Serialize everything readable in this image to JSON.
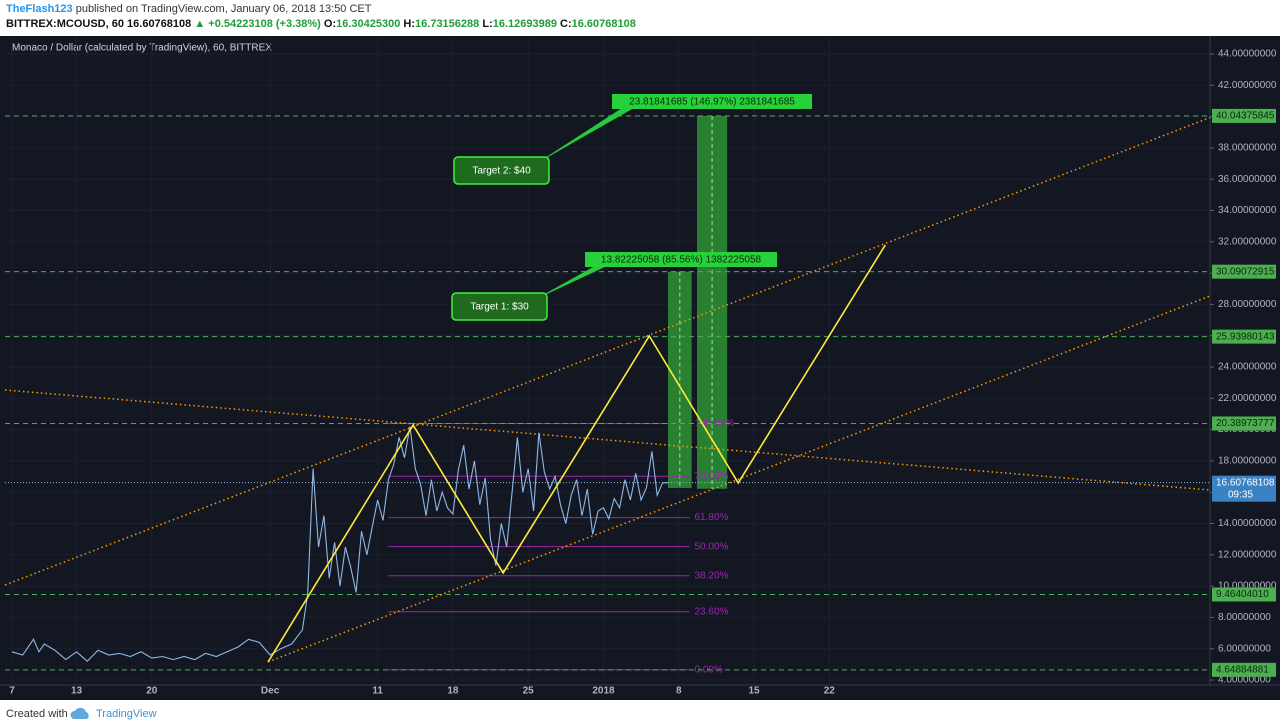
{
  "header": {
    "user": "TheFlash123",
    "published": "published on TradingView.com, January 06, 2018 13:50 CET",
    "symbol": "BITTREX:MCOUSD, 60",
    "price": "16.60768108",
    "change": "+0.54223108 (+3.38%)",
    "o_label": "O:",
    "open": "16.30425300",
    "h_label": "H:",
    "high": "16.73156288",
    "l_label": "L:",
    "low": "16.12693989",
    "c_label": "C:",
    "close": "16.60768108"
  },
  "footer": {
    "created": "Created with",
    "brand": "TradingView"
  },
  "chart_data": {
    "type": "line",
    "title": "Monaco / Dollar (calculated by TradingView), 60, BITTREX",
    "color": "#8fb8e6",
    "grid": true,
    "xlim": [
      5.35,
      117.4
    ],
    "ylim": [
      3.68,
      45.15
    ],
    "xticks": [
      {
        "value": 6,
        "label": "7"
      },
      {
        "value": 12,
        "label": "13"
      },
      {
        "value": 19,
        "label": "20"
      },
      {
        "value": 30,
        "label": "Dec"
      },
      {
        "value": 40,
        "label": "11"
      },
      {
        "value": 47,
        "label": "18"
      },
      {
        "value": 54,
        "label": "25"
      },
      {
        "value": 61,
        "label": "2018"
      },
      {
        "value": 68,
        "label": "8"
      },
      {
        "value": 75,
        "label": "15"
      },
      {
        "value": 82,
        "label": "22"
      }
    ],
    "yticks": [
      {
        "value": 4,
        "label": "4.00000000"
      },
      {
        "value": 6,
        "label": "6.00000000"
      },
      {
        "value": 8,
        "label": "8.00000000"
      },
      {
        "value": 10,
        "label": "10.00000000"
      },
      {
        "value": 12,
        "label": "12.00000000"
      },
      {
        "value": 14,
        "label": "14.00000000"
      },
      {
        "value": 16,
        "label": "16.00000000"
      },
      {
        "value": 18,
        "label": "18.00000000"
      },
      {
        "value": 20,
        "label": "20.00000000"
      },
      {
        "value": 22,
        "label": "22.00000000"
      },
      {
        "value": 24,
        "label": "24.00000000"
      },
      {
        "value": 26,
        "label": "26.00000000"
      },
      {
        "value": 28,
        "label": "28.00000000"
      },
      {
        "value": 30,
        "label": "30.00000000"
      },
      {
        "value": 32,
        "label": "32.00000000"
      },
      {
        "value": 34,
        "label": "34.00000000"
      },
      {
        "value": 36,
        "label": "36.00000000"
      },
      {
        "value": 38,
        "label": "38.00000000"
      },
      {
        "value": 40,
        "label": "40.00000000"
      },
      {
        "value": 42,
        "label": "42.00000000"
      },
      {
        "value": 44,
        "label": "44.00000000"
      }
    ],
    "x": [
      6,
      7,
      8,
      8.5,
      9,
      10,
      11,
      12,
      13,
      14,
      15,
      16,
      17,
      18,
      19,
      20,
      21,
      22,
      23,
      24,
      25,
      26,
      27,
      28,
      29,
      30,
      31,
      32,
      33,
      33.5,
      34,
      34.5,
      35,
      35.5,
      36,
      36.5,
      37,
      37.5,
      38,
      38.5,
      39,
      39.5,
      40,
      40.5,
      41,
      41.5,
      42,
      42.5,
      43,
      43.5,
      44,
      44.5,
      45,
      45.5,
      46,
      46.5,
      47,
      47.5,
      48,
      48.5,
      49,
      49.5,
      50,
      50.5,
      51,
      51.5,
      52,
      52.5,
      53,
      53.5,
      54,
      54.5,
      55,
      55.5,
      56,
      56.5,
      57,
      57.5,
      58,
      58.5,
      59,
      59.5,
      60,
      60.5,
      61,
      61.5,
      62,
      62.5,
      63,
      63.5,
      64,
      64.5,
      65,
      65.5,
      66,
      66.5,
      67
    ],
    "values": [
      5.8,
      5.6,
      6.6,
      5.8,
      6.3,
      5.9,
      5.3,
      5.8,
      5.2,
      5.9,
      5.6,
      5.7,
      5.5,
      5.8,
      5.4,
      5.5,
      5.3,
      5.5,
      5.3,
      5.7,
      5.5,
      5.8,
      6.1,
      6.6,
      6.4,
      5.6,
      6.0,
      6.3,
      7.2,
      9.5,
      17.5,
      12.5,
      14.5,
      10.5,
      12.8,
      10.0,
      12.5,
      11.2,
      9.6,
      13.5,
      12.0,
      13.8,
      15.5,
      14.2,
      16.8,
      17.8,
      19.5,
      18.2,
      20.2,
      17.5,
      16.5,
      14.5,
      16.8,
      14.8,
      16.0,
      15.0,
      14.6,
      17.4,
      19.0,
      16.2,
      18.0,
      15.2,
      16.9,
      13.0,
      11.3,
      14.0,
      12.5,
      16.0,
      19.5,
      16.0,
      17.5,
      14.8,
      19.8,
      17.3,
      16.2,
      17.0,
      15.2,
      14.0,
      15.8,
      16.8,
      14.5,
      16.2,
      13.3,
      14.8,
      15.0,
      14.3,
      15.6,
      15.0,
      16.8,
      15.5,
      17.2,
      15.5,
      16.3,
      18.6,
      15.8,
      16.6,
      16.6
    ],
    "levels": {
      "color": "#4caf50",
      "items": [
        {
          "value": 40.04375845,
          "label": "40.04375845"
        },
        {
          "value": 30.09072915,
          "label": "30.09072915"
        },
        {
          "value": 25.93980143,
          "label": "25.93980143"
        },
        {
          "value": 20.38973777,
          "label": "20.38973777"
        },
        {
          "value": 9.4640401,
          "label": "9.46404010"
        },
        {
          "value": 4.64884881,
          "label": "4.64884881"
        }
      ]
    },
    "last": {
      "value": 16.60768108,
      "label": "16.60768108",
      "time": "09:35"
    },
    "fib": {
      "start": 4.64884881,
      "end": 20.38973777,
      "x": [
        41,
        69
      ],
      "color": "#9c27b0",
      "levels": [
        {
          "value": 0,
          "label": "0.00%"
        },
        {
          "value": 23.6,
          "label": "23.60%"
        },
        {
          "value": 38.2,
          "label": "38.20%"
        },
        {
          "value": 50,
          "label": "50.00%"
        },
        {
          "value": 61.8,
          "label": "61.80%"
        },
        {
          "value": 78.6,
          "label": "78.60%"
        },
        {
          "value": 100,
          "label": "100.00%"
        }
      ]
    },
    "trendlines": {
      "color": "#ff9800",
      "lines": [
        {
          "x": [
            5.35,
            117.4
          ],
          "y": [
            10.07,
            39.94
          ]
        },
        {
          "x": [
            29.81,
            117.4
          ],
          "y": [
            5.15,
            28.54
          ]
        },
        {
          "x": [
            5.35,
            117.4
          ],
          "y": [
            22.53,
            16.14
          ]
        }
      ]
    },
    "zigzag": {
      "color": "#ffeb3b",
      "x": [
        29.81,
        43.3,
        51.67,
        65.26,
        73.53,
        87.21
      ],
      "y": [
        5.15,
        20.29,
        10.84,
        25.98,
        16.59,
        31.8
      ]
    },
    "projections": [
      {
        "x": [
          67,
          69.2
        ],
        "from": 16.27,
        "to": 30.09,
        "label": "13.82225058 (85.56%) 1382225058"
      },
      {
        "x": [
          69.7,
          72.5
        ],
        "from": 16.22,
        "to": 40.04,
        "label": "23.81841685 (146.97%) 2381841685"
      }
    ],
    "targets": [
      "Target 1: $30",
      "Target 2: $40"
    ]
  }
}
